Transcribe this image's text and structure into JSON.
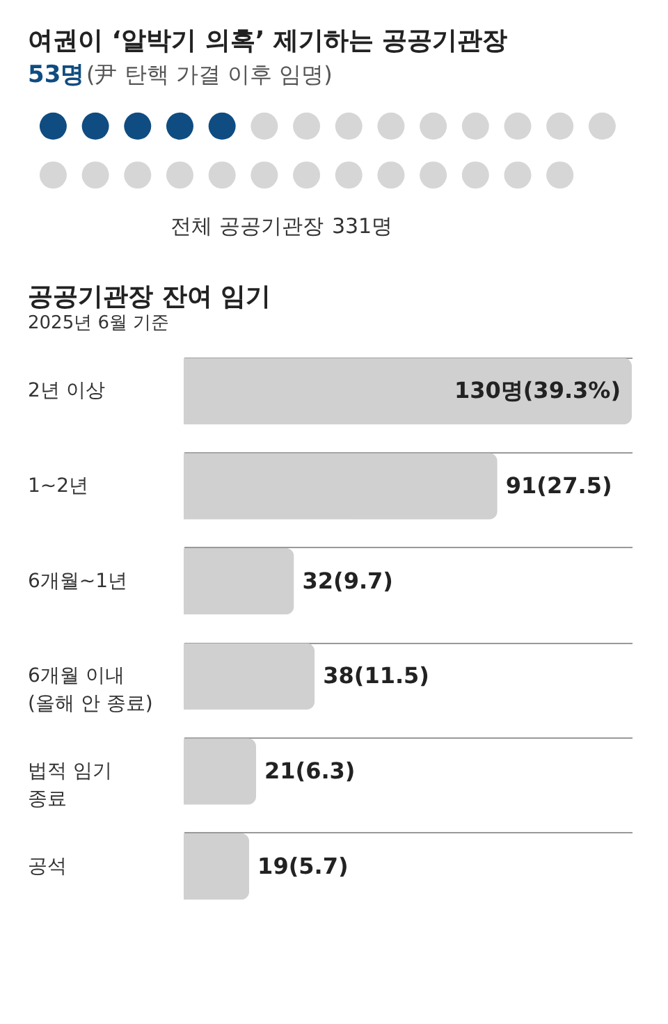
{
  "chart_data": [
    {
      "type": "other",
      "title": "여권이 ‘알박기 의혹’ 제기하는 공공기관장",
      "subtitle": "(尹 탄핵 가결 이후 임명)",
      "values": [
        53,
        331
      ],
      "colors": [
        "#0f4c81",
        "#d6d6d6"
      ],
      "value_labels": [
        "53명",
        "331명"
      ],
      "annotations": [
        "전체 공공기관장"
      ]
    },
    {
      "type": "bar",
      "orientation": "horizontal",
      "title": "공공기관장 잔여 임기",
      "subtitle": "2025년 6월 기준",
      "categories": [
        "2년 이상",
        "1~2년",
        "6개월~1년",
        "6개월 이내\n(올해 안 종료)",
        "법적 임기\n종료",
        "공석"
      ],
      "values": [
        130,
        91,
        32,
        38,
        21,
        19
      ],
      "color": "#d0d0d0",
      "value_labels": [
        "130명(39.3%)",
        "91(27.5)",
        "32(9.7)",
        "38(11.5)",
        "21(6.3)",
        "19(5.7)"
      ],
      "grid": "y"
    }
  ]
}
